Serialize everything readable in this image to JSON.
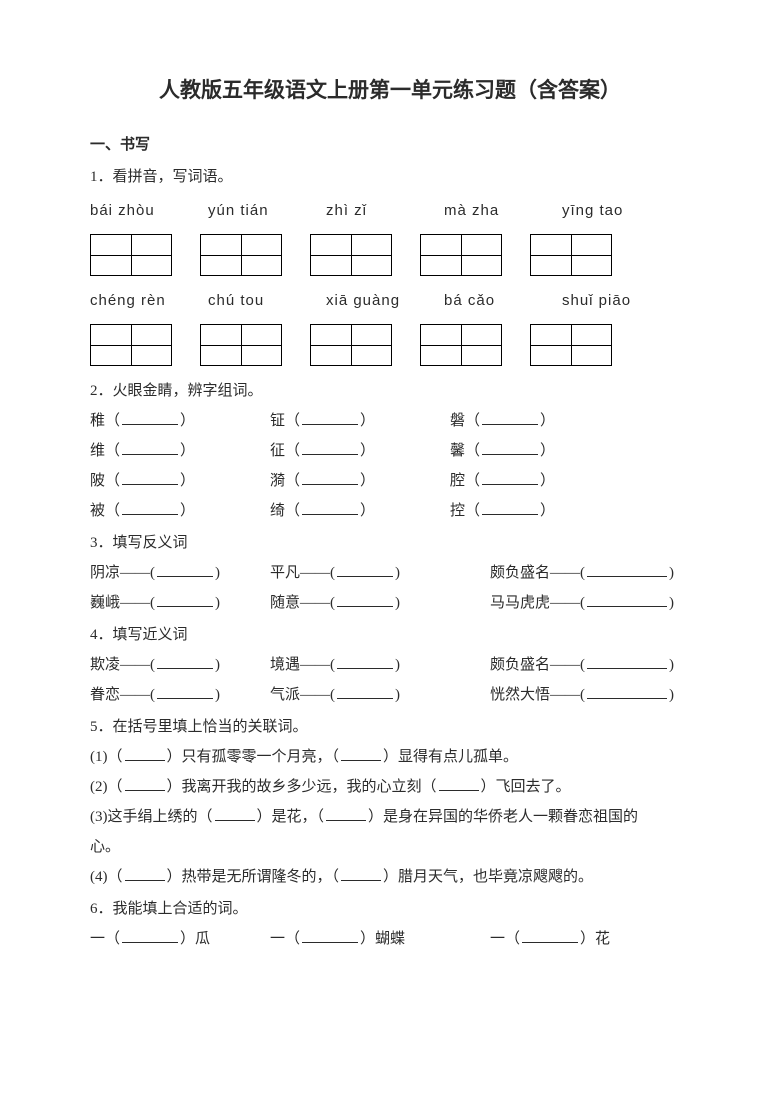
{
  "title": "人教版五年级语文上册第一单元练习题（含答案）",
  "section1": {
    "head": "一、书写"
  },
  "q1": {
    "label": "1．看拼音，写词语。",
    "pinyin_row1": [
      "bái zhòu",
      "yún  tián",
      "zhì zǐ",
      "mà  zha",
      "yīng  tao"
    ],
    "pinyin_row2": [
      "chéng rèn",
      "chú  tou",
      "xiā guàng",
      "bá cǎo",
      "shuǐ piāo"
    ]
  },
  "q2": {
    "label": "2．火眼金睛，辨字组词。",
    "rows": [
      [
        "稚",
        "钲",
        "磐"
      ],
      [
        "维",
        "征",
        "馨"
      ],
      [
        "陂",
        "漪",
        "腔"
      ],
      [
        "被",
        "绮",
        "控"
      ]
    ]
  },
  "q3": {
    "label": "3．填写反义词",
    "rows": [
      [
        "阴凉——",
        "平凡——",
        "颇负盛名——"
      ],
      [
        "巍峨——",
        "随意——",
        "马马虎虎——"
      ]
    ]
  },
  "q4": {
    "label": "4．填写近义词",
    "rows": [
      [
        "欺凌——",
        "境遇——",
        "颇负盛名——"
      ],
      [
        "眷恋——",
        "气派——",
        "恍然大悟——"
      ]
    ]
  },
  "q5": {
    "label": "5．在括号里填上恰当的关联词。",
    "items": [
      {
        "pre": "(1)（",
        "mid1": "）只有孤零零一个月亮，（",
        "mid2": "）显得有点儿孤单。"
      },
      {
        "pre": "(2)（",
        "mid1": "）我离开我的故乡多少远，我的心立刻（",
        "mid2": "）飞回去了。"
      },
      {
        "pre": "(3)这手绢上绣的（",
        "mid1": "）是花，（",
        "mid2": "）是身在异国的华侨老人一颗眷恋祖国的",
        "tail": "心。"
      },
      {
        "pre": "(4)（",
        "mid1": "）热带是无所谓隆冬的，（",
        "mid2": "）腊月天气，也毕竟凉飕飕的。"
      }
    ]
  },
  "q6": {
    "label": "6．我能填上合适的词。",
    "items": [
      "瓜",
      "蝴蝶",
      "花"
    ]
  }
}
